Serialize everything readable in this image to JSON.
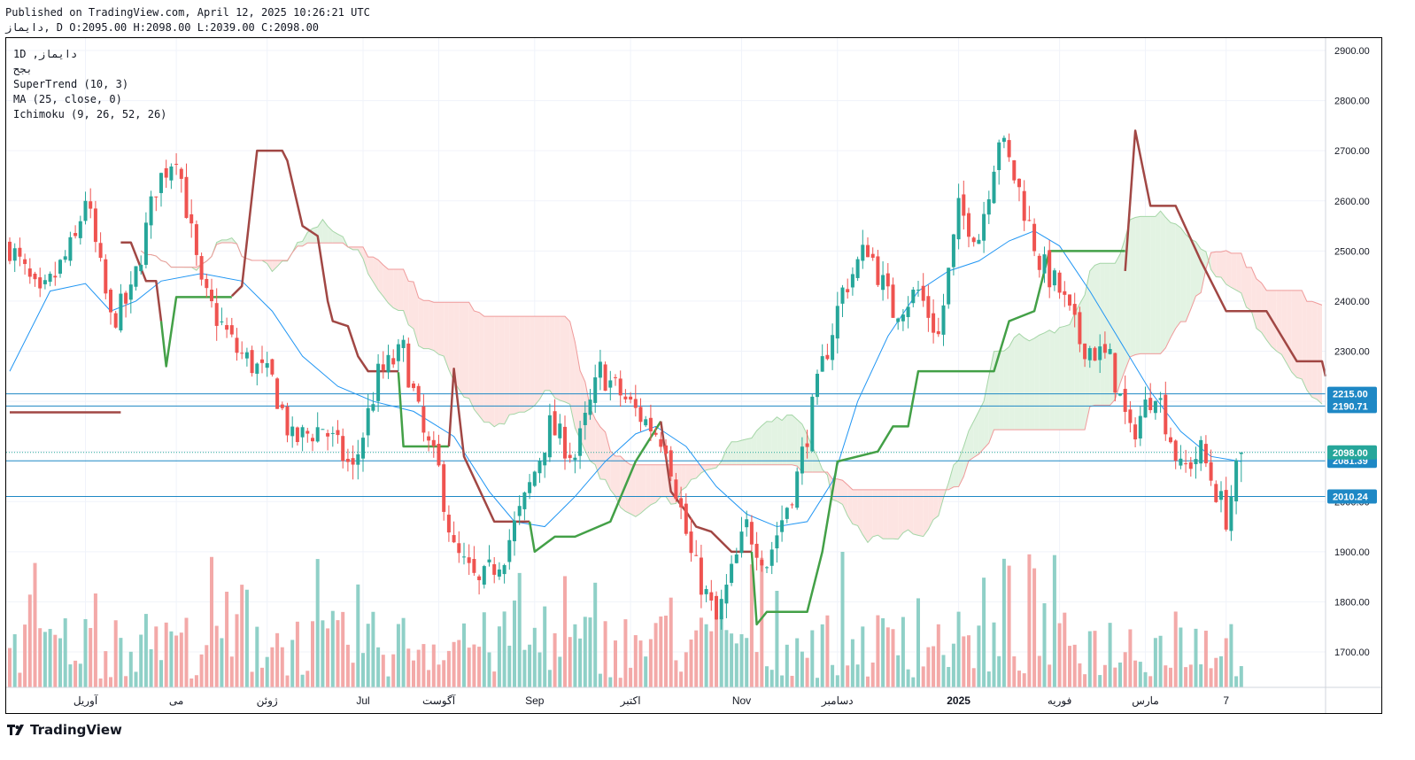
{
  "header": {
    "published": "Published on TradingView.com, April 12, 2025 10:26:21 UTC",
    "ohlc": "دایماز, D O:2095.00 H:2098.00 L:2039.00 C:2098.00"
  },
  "legend": {
    "symbol": "1D ,دایماز",
    "exchange": "بجح",
    "supertrend": "SuperTrend (10, 3)",
    "ma": "MA (25, close, 0)",
    "ichimoku": "Ichimoku (9, 26, 52, 26)"
  },
  "brand": {
    "name": "TradingView"
  },
  "colors": {
    "up": "#26a69a",
    "down": "#ef5350",
    "up_vol": "#8fd0c7",
    "down_vol": "#f3a9a8",
    "st_up": "#43a047",
    "st_down": "#a14744",
    "ma": "#2196f3",
    "hline": "#1e88c5",
    "cloud_bull": "#e3f3e3",
    "cloud_bear": "#fde4e2"
  },
  "chart_data": {
    "type": "candlestick",
    "timeframe": "1D",
    "ylim": [
      1620,
      2920
    ],
    "y_ticks": [
      1700,
      1800,
      1900,
      2000,
      2100,
      2200,
      2300,
      2400,
      2500,
      2600,
      2700,
      2800,
      2900
    ],
    "y_tick_labels": [
      "1700.00",
      "1800.00",
      "1900.00",
      "2000.00",
      "2100.00",
      "2200.00",
      "2300.00",
      "2400.00",
      "2500.00",
      "2600.00",
      "2700.00",
      "2800.00",
      "2900.00"
    ],
    "x_labels": [
      {
        "label": "آوریل",
        "bar": 15
      },
      {
        "label": "می",
        "bar": 33
      },
      {
        "label": "ژوئن",
        "bar": 51
      },
      {
        "label": "Jul",
        "bar": 70
      },
      {
        "label": "آگوست",
        "bar": 85
      },
      {
        "label": "Sep",
        "bar": 104
      },
      {
        "label": "اکتبر",
        "bar": 123
      },
      {
        "label": "Nov",
        "bar": 145
      },
      {
        "label": "دسامبر",
        "bar": 164
      },
      {
        "label": "2025",
        "bar": 188
      },
      {
        "label": "فوریه",
        "bar": 208
      },
      {
        "label": "مارس",
        "bar": 225
      },
      {
        "label": "7",
        "bar": 241
      }
    ],
    "levels": [
      {
        "value": 2215.0,
        "label": "2215.00",
        "color": "#1e88c5"
      },
      {
        "value": 2190.71,
        "label": "2190.71",
        "color": "#1e88c5"
      },
      {
        "value": 2081.39,
        "label": "2081.39",
        "color": "#1e88c5"
      },
      {
        "value": 2010.24,
        "label": "2010.24",
        "color": "#1e88c5"
      }
    ],
    "last_price": {
      "value": 2098.0,
      "label": "2098.00",
      "color": "#26a69a"
    },
    "ohlc_key": {
      "id": "1fLD0Ctk",
      "comment": "generated series: candles follow this close path (anchor bars / prices)",
      "anchors": [
        [
          0,
          2510
        ],
        [
          6,
          2400
        ],
        [
          13,
          2520
        ],
        [
          15,
          2610
        ],
        [
          20,
          2360
        ],
        [
          24,
          2410
        ],
        [
          29,
          2630
        ],
        [
          33,
          2700
        ],
        [
          38,
          2420
        ],
        [
          45,
          2300
        ],
        [
          52,
          2240
        ],
        [
          56,
          2120
        ],
        [
          62,
          2150
        ],
        [
          68,
          2060
        ],
        [
          73,
          2250
        ],
        [
          78,
          2300
        ],
        [
          82,
          2130
        ],
        [
          85,
          2060
        ],
        [
          88,
          1900
        ],
        [
          93,
          1830
        ],
        [
          98,
          1900
        ],
        [
          102,
          2000
        ],
        [
          107,
          2150
        ],
        [
          112,
          2090
        ],
        [
          117,
          2260
        ],
        [
          124,
          2180
        ],
        [
          130,
          2120
        ],
        [
          135,
          1890
        ],
        [
          140,
          1760
        ],
        [
          146,
          1950
        ],
        [
          150,
          1880
        ],
        [
          156,
          2050
        ],
        [
          161,
          2270
        ],
        [
          165,
          2420
        ],
        [
          170,
          2510
        ],
        [
          175,
          2380
        ],
        [
          180,
          2420
        ],
        [
          184,
          2330
        ],
        [
          188,
          2580
        ],
        [
          192,
          2530
        ],
        [
          196,
          2730
        ],
        [
          200,
          2620
        ],
        [
          204,
          2480
        ],
        [
          208,
          2420
        ],
        [
          212,
          2320
        ],
        [
          218,
          2280
        ],
        [
          222,
          2130
        ],
        [
          227,
          2230
        ],
        [
          232,
          2060
        ],
        [
          236,
          2100
        ],
        [
          241,
          1970
        ],
        [
          244,
          2098
        ]
      ]
    },
    "candles_count": 245,
    "supertrend": {
      "segments": [
        {
          "trend": "down",
          "points": [
            [
              0,
              2178
            ],
            [
              22,
              2178
            ]
          ]
        },
        {
          "trend": "down",
          "points": [
            [
              22,
              2517
            ],
            [
              24,
              2517
            ],
            [
              27,
              2440
            ],
            [
              29,
              2440
            ],
            [
              30,
              2360
            ]
          ]
        },
        {
          "trend": "up",
          "points": [
            [
              30,
              2360
            ],
            [
              31,
              2270
            ],
            [
              33,
              2408
            ],
            [
              44,
              2408
            ]
          ]
        },
        {
          "trend": "down",
          "points": [
            [
              44,
              2410
            ],
            [
              46,
              2430
            ],
            [
              49,
              2700
            ],
            [
              54,
              2700
            ],
            [
              55,
              2680
            ],
            [
              58,
              2550
            ],
            [
              61,
              2530
            ],
            [
              63,
              2400
            ],
            [
              64,
              2360
            ],
            [
              67,
              2350
            ],
            [
              69,
              2290
            ],
            [
              71,
              2260
            ],
            [
              77,
              2260
            ]
          ]
        },
        {
          "trend": "up",
          "points": [
            [
              77,
              2258
            ],
            [
              78,
              2110
            ],
            [
              87,
              2110
            ]
          ]
        },
        {
          "trend": "down",
          "points": [
            [
              87,
              2110
            ],
            [
              88,
              2265
            ],
            [
              90,
              2090
            ],
            [
              96,
              1960
            ],
            [
              103,
              1960
            ]
          ]
        },
        {
          "trend": "up",
          "points": [
            [
              103,
              1960
            ],
            [
              104,
              1900
            ],
            [
              106,
              1915
            ],
            [
              108,
              1930
            ],
            [
              112,
              1930
            ],
            [
              119,
              1960
            ],
            [
              124,
              2080
            ],
            [
              129,
              2160
            ]
          ]
        },
        {
          "trend": "down",
          "points": [
            [
              129,
              2160
            ],
            [
              131,
              2020
            ],
            [
              134,
              1980
            ],
            [
              136,
              1950
            ],
            [
              139,
              1940
            ],
            [
              143,
              1900
            ],
            [
              147,
              1900
            ]
          ]
        },
        {
          "trend": "up",
          "points": [
            [
              147,
              1900
            ],
            [
              148,
              1755
            ],
            [
              150,
              1780
            ],
            [
              158,
              1780
            ],
            [
              161,
              1900
            ],
            [
              164,
              2080
            ],
            [
              172,
              2100
            ],
            [
              175,
              2150
            ],
            [
              178,
              2150
            ],
            [
              180,
              2260
            ],
            [
              195,
              2260
            ],
            [
              198,
              2360
            ],
            [
              203,
              2380
            ],
            [
              206,
              2500
            ],
            [
              221,
              2500
            ]
          ]
        },
        {
          "trend": "down",
          "points": [
            [
              221,
              2460
            ],
            [
              223,
              2740
            ],
            [
              226,
              2590
            ],
            [
              231,
              2590
            ],
            [
              236,
              2480
            ],
            [
              241,
              2380
            ],
            [
              243,
              2380
            ],
            [
              249,
              2380
            ],
            [
              255,
              2280
            ],
            [
              260,
              2280
            ],
            [
              264,
              2250
            ],
            [
              278,
              2250
            ]
          ]
        }
      ]
    },
    "ma_25": [
      [
        0,
        2260
      ],
      [
        8,
        2420
      ],
      [
        15,
        2435
      ],
      [
        20,
        2380
      ],
      [
        25,
        2400
      ],
      [
        30,
        2440
      ],
      [
        38,
        2455
      ],
      [
        46,
        2440
      ],
      [
        52,
        2380
      ],
      [
        58,
        2290
      ],
      [
        65,
        2230
      ],
      [
        72,
        2200
      ],
      [
        80,
        2180
      ],
      [
        88,
        2130
      ],
      [
        95,
        2020
      ],
      [
        100,
        1960
      ],
      [
        106,
        1950
      ],
      [
        112,
        2010
      ],
      [
        118,
        2080
      ],
      [
        124,
        2135
      ],
      [
        128,
        2150
      ],
      [
        134,
        2110
      ],
      [
        140,
        2030
      ],
      [
        146,
        1975
      ],
      [
        152,
        1950
      ],
      [
        158,
        1960
      ],
      [
        163,
        2040
      ],
      [
        168,
        2200
      ],
      [
        174,
        2330
      ],
      [
        180,
        2420
      ],
      [
        186,
        2460
      ],
      [
        192,
        2480
      ],
      [
        198,
        2520
      ],
      [
        203,
        2540
      ],
      [
        208,
        2510
      ],
      [
        214,
        2420
      ],
      [
        220,
        2320
      ],
      [
        226,
        2220
      ],
      [
        232,
        2140
      ],
      [
        238,
        2090
      ],
      [
        244,
        2080
      ]
    ]
  }
}
